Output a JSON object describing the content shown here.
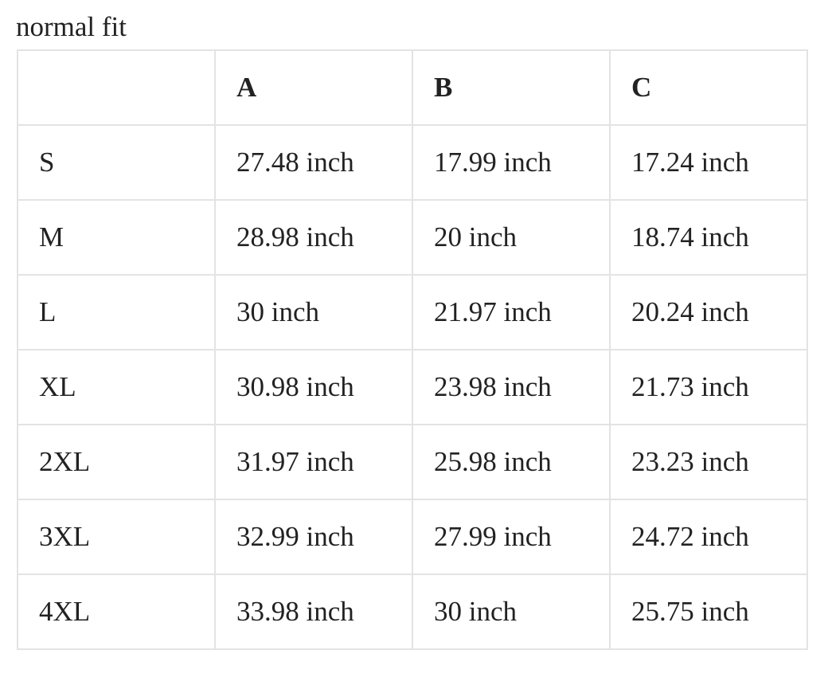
{
  "caption": "normal fit",
  "table": {
    "header": [
      "A",
      "B",
      "C"
    ],
    "rows": [
      [
        "S",
        "27.48 inch",
        "17.99 inch",
        "17.24 inch"
      ],
      [
        "M",
        "28.98 inch",
        "20 inch",
        "18.74 inch"
      ],
      [
        "L",
        "30 inch",
        "21.97 inch",
        "20.24 inch"
      ],
      [
        "XL",
        "30.98 inch",
        "23.98 inch",
        "21.73 inch"
      ],
      [
        "2XL",
        "31.97 inch",
        "25.98 inch",
        "23.23 inch"
      ],
      [
        "3XL",
        "32.99 inch",
        "27.99 inch",
        "24.72 inch"
      ],
      [
        "4XL",
        "33.98 inch",
        "30 inch",
        "25.75 inch"
      ]
    ]
  }
}
